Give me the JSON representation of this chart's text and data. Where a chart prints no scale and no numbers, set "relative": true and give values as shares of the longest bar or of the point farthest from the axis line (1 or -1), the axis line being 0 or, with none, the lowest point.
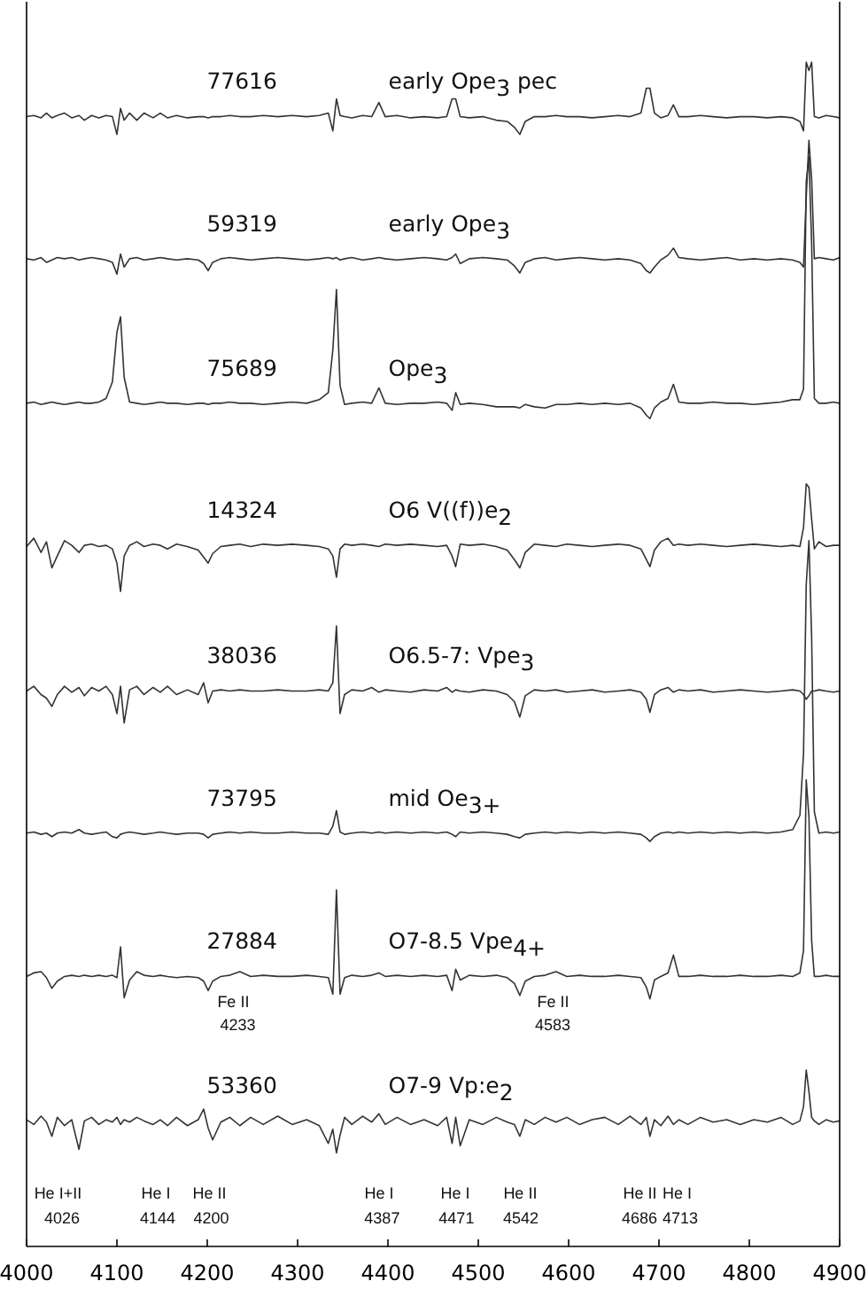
{
  "chart_data": {
    "type": "line",
    "relative": true,
    "marker": "none",
    "x": [
      4000,
      4008,
      4016,
      4022,
      4028,
      4034,
      4042,
      4050,
      4058,
      4064,
      4072,
      4080,
      4088,
      4095,
      4100,
      4104,
      4108,
      4114,
      4122,
      4130,
      4140,
      4148,
      4156,
      4166,
      4178,
      4190,
      4196,
      4201,
      4206,
      4215,
      4225,
      4236,
      4248,
      4262,
      4278,
      4294,
      4310,
      4324,
      4334,
      4339,
      4343,
      4347,
      4352,
      4360,
      4372,
      4382,
      4390,
      4397,
      4410,
      4425,
      4440,
      4455,
      4465,
      4471,
      4475,
      4480,
      4490,
      4505,
      4520,
      4532,
      4540,
      4546,
      4552,
      4562,
      4574,
      4586,
      4598,
      4612,
      4626,
      4640,
      4655,
      4668,
      4680,
      4686,
      4690,
      4695,
      4702,
      4710,
      4716,
      4722,
      4732,
      4746,
      4760,
      4775,
      4790,
      4805,
      4820,
      4835,
      4848,
      4856,
      4860,
      4863,
      4866,
      4869,
      4872,
      4877,
      4885,
      4893,
      4900
    ],
    "xlim": [
      4000,
      4900
    ],
    "xticks": [
      4000,
      4100,
      4200,
      4300,
      4400,
      4500,
      4600,
      4700,
      4800,
      4900
    ],
    "series": [
      {
        "color": "#333333",
        "values": [
          0.954,
          0.955,
          0.953,
          0.957,
          0.953,
          0.955,
          0.957,
          0.953,
          0.955,
          0.951,
          0.955,
          0.953,
          0.955,
          0.954,
          0.939,
          0.961,
          0.951,
          0.957,
          0.951,
          0.957,
          0.953,
          0.957,
          0.953,
          0.955,
          0.953,
          0.954,
          0.954,
          0.953,
          0.954,
          0.954,
          0.955,
          0.954,
          0.954,
          0.955,
          0.954,
          0.955,
          0.954,
          0.955,
          0.957,
          0.942,
          0.969,
          0.955,
          0.954,
          0.953,
          0.955,
          0.954,
          0.966,
          0.954,
          0.955,
          0.953,
          0.954,
          0.953,
          0.954,
          0.969,
          0.969,
          0.954,
          0.953,
          0.954,
          0.951,
          0.95,
          0.945,
          0.939,
          0.95,
          0.954,
          0.954,
          0.955,
          0.954,
          0.954,
          0.953,
          0.954,
          0.955,
          0.954,
          0.957,
          0.978,
          0.978,
          0.957,
          0.953,
          0.955,
          0.964,
          0.954,
          0.954,
          0.955,
          0.954,
          0.953,
          0.954,
          0.954,
          0.953,
          0.954,
          0.953,
          0.95,
          0.942,
          1.0,
          0.993,
          1.0,
          0.954,
          0.953,
          0.955,
          0.954,
          0.953
        ]
      },
      {
        "color": "#333333",
        "values": [
          0.834,
          0.833,
          0.835,
          0.831,
          0.833,
          0.835,
          0.834,
          0.835,
          0.833,
          0.834,
          0.835,
          0.834,
          0.833,
          0.831,
          0.821,
          0.838,
          0.827,
          0.834,
          0.835,
          0.833,
          0.834,
          0.835,
          0.834,
          0.833,
          0.834,
          0.833,
          0.83,
          0.824,
          0.831,
          0.834,
          0.835,
          0.834,
          0.833,
          0.834,
          0.835,
          0.834,
          0.833,
          0.834,
          0.835,
          0.834,
          0.835,
          0.833,
          0.834,
          0.835,
          0.833,
          0.834,
          0.835,
          0.834,
          0.833,
          0.834,
          0.835,
          0.834,
          0.833,
          0.835,
          0.838,
          0.83,
          0.834,
          0.835,
          0.834,
          0.833,
          0.828,
          0.822,
          0.831,
          0.834,
          0.835,
          0.833,
          0.834,
          0.835,
          0.834,
          0.833,
          0.834,
          0.833,
          0.83,
          0.824,
          0.822,
          0.827,
          0.833,
          0.837,
          0.843,
          0.835,
          0.834,
          0.833,
          0.834,
          0.835,
          0.833,
          0.834,
          0.833,
          0.834,
          0.833,
          0.831,
          0.827,
          0.886,
          0.934,
          0.901,
          0.834,
          0.835,
          0.834,
          0.833,
          0.835
        ]
      },
      {
        "color": "#333333",
        "values": [
          0.712,
          0.713,
          0.711,
          0.712,
          0.713,
          0.712,
          0.711,
          0.712,
          0.713,
          0.712,
          0.712,
          0.713,
          0.716,
          0.73,
          0.772,
          0.785,
          0.734,
          0.713,
          0.712,
          0.711,
          0.712,
          0.713,
          0.712,
          0.712,
          0.711,
          0.712,
          0.712,
          0.711,
          0.712,
          0.712,
          0.713,
          0.712,
          0.712,
          0.711,
          0.712,
          0.713,
          0.712,
          0.715,
          0.721,
          0.757,
          0.808,
          0.727,
          0.711,
          0.712,
          0.713,
          0.712,
          0.725,
          0.712,
          0.711,
          0.712,
          0.712,
          0.713,
          0.712,
          0.706,
          0.721,
          0.711,
          0.712,
          0.711,
          0.709,
          0.709,
          0.709,
          0.708,
          0.711,
          0.709,
          0.708,
          0.711,
          0.711,
          0.712,
          0.711,
          0.712,
          0.711,
          0.712,
          0.708,
          0.702,
          0.699,
          0.708,
          0.713,
          0.716,
          0.728,
          0.713,
          0.712,
          0.712,
          0.713,
          0.712,
          0.712,
          0.711,
          0.712,
          0.713,
          0.715,
          0.715,
          0.724,
          0.899,
          0.92,
          0.847,
          0.716,
          0.712,
          0.712,
          0.713,
          0.712
        ]
      },
      {
        "color": "#333333",
        "values": [
          0.591,
          0.598,
          0.586,
          0.595,
          0.573,
          0.583,
          0.596,
          0.592,
          0.586,
          0.592,
          0.593,
          0.591,
          0.592,
          0.589,
          0.577,
          0.553,
          0.583,
          0.592,
          0.595,
          0.591,
          0.593,
          0.592,
          0.589,
          0.593,
          0.591,
          0.588,
          0.582,
          0.577,
          0.585,
          0.591,
          0.592,
          0.593,
          0.591,
          0.593,
          0.592,
          0.593,
          0.592,
          0.591,
          0.589,
          0.583,
          0.565,
          0.589,
          0.593,
          0.592,
          0.593,
          0.592,
          0.591,
          0.593,
          0.592,
          0.593,
          0.592,
          0.591,
          0.592,
          0.583,
          0.574,
          0.593,
          0.592,
          0.593,
          0.591,
          0.588,
          0.58,
          0.573,
          0.586,
          0.593,
          0.592,
          0.591,
          0.593,
          0.592,
          0.591,
          0.592,
          0.593,
          0.592,
          0.589,
          0.58,
          0.574,
          0.588,
          0.595,
          0.598,
          0.592,
          0.593,
          0.592,
          0.593,
          0.592,
          0.591,
          0.592,
          0.593,
          0.592,
          0.591,
          0.592,
          0.591,
          0.607,
          0.644,
          0.641,
          0.614,
          0.589,
          0.595,
          0.591,
          0.592,
          0.592
        ]
      },
      {
        "color": "#333333",
        "values": [
          0.469,
          0.473,
          0.466,
          0.463,
          0.456,
          0.466,
          0.473,
          0.468,
          0.472,
          0.465,
          0.472,
          0.469,
          0.473,
          0.466,
          0.45,
          0.473,
          0.442,
          0.47,
          0.473,
          0.466,
          0.472,
          0.468,
          0.473,
          0.466,
          0.47,
          0.466,
          0.476,
          0.459,
          0.469,
          0.47,
          0.469,
          0.47,
          0.469,
          0.469,
          0.47,
          0.469,
          0.469,
          0.47,
          0.469,
          0.476,
          0.524,
          0.45,
          0.466,
          0.47,
          0.469,
          0.472,
          0.468,
          0.47,
          0.469,
          0.468,
          0.47,
          0.469,
          0.472,
          0.468,
          0.47,
          0.469,
          0.468,
          0.47,
          0.469,
          0.466,
          0.46,
          0.447,
          0.465,
          0.47,
          0.469,
          0.47,
          0.468,
          0.469,
          0.47,
          0.468,
          0.469,
          0.47,
          0.468,
          0.462,
          0.451,
          0.466,
          0.47,
          0.472,
          0.468,
          0.47,
          0.469,
          0.47,
          0.468,
          0.469,
          0.47,
          0.469,
          0.468,
          0.469,
          0.47,
          0.469,
          0.466,
          0.462,
          0.465,
          0.469,
          0.469,
          0.47,
          0.469,
          0.468,
          0.469
        ]
      },
      {
        "color": "#333333",
        "values": [
          0.349,
          0.35,
          0.348,
          0.349,
          0.346,
          0.349,
          0.35,
          0.349,
          0.352,
          0.349,
          0.348,
          0.349,
          0.35,
          0.346,
          0.345,
          0.348,
          0.349,
          0.35,
          0.349,
          0.348,
          0.349,
          0.35,
          0.349,
          0.348,
          0.349,
          0.349,
          0.348,
          0.345,
          0.348,
          0.349,
          0.35,
          0.349,
          0.35,
          0.349,
          0.349,
          0.35,
          0.349,
          0.349,
          0.348,
          0.355,
          0.368,
          0.35,
          0.348,
          0.349,
          0.35,
          0.349,
          0.35,
          0.349,
          0.35,
          0.349,
          0.35,
          0.349,
          0.35,
          0.348,
          0.346,
          0.35,
          0.349,
          0.35,
          0.349,
          0.348,
          0.346,
          0.345,
          0.348,
          0.349,
          0.35,
          0.349,
          0.35,
          0.349,
          0.35,
          0.349,
          0.35,
          0.349,
          0.348,
          0.345,
          0.342,
          0.346,
          0.349,
          0.35,
          0.349,
          0.35,
          0.349,
          0.35,
          0.349,
          0.35,
          0.349,
          0.35,
          0.349,
          0.35,
          0.352,
          0.364,
          0.416,
          0.559,
          0.596,
          0.514,
          0.367,
          0.349,
          0.35,
          0.349,
          0.35
        ]
      },
      {
        "color": "#333333",
        "values": [
          0.228,
          0.231,
          0.232,
          0.227,
          0.218,
          0.224,
          0.228,
          0.229,
          0.228,
          0.229,
          0.228,
          0.229,
          0.228,
          0.229,
          0.227,
          0.253,
          0.21,
          0.225,
          0.232,
          0.229,
          0.228,
          0.229,
          0.228,
          0.227,
          0.228,
          0.227,
          0.224,
          0.216,
          0.224,
          0.228,
          0.229,
          0.232,
          0.228,
          0.229,
          0.228,
          0.228,
          0.229,
          0.228,
          0.227,
          0.213,
          0.301,
          0.213,
          0.227,
          0.229,
          0.228,
          0.229,
          0.231,
          0.228,
          0.229,
          0.228,
          0.229,
          0.228,
          0.229,
          0.216,
          0.234,
          0.225,
          0.229,
          0.228,
          0.229,
          0.227,
          0.222,
          0.212,
          0.224,
          0.228,
          0.229,
          0.232,
          0.228,
          0.229,
          0.228,
          0.228,
          0.229,
          0.228,
          0.227,
          0.219,
          0.209,
          0.225,
          0.228,
          0.231,
          0.246,
          0.228,
          0.228,
          0.229,
          0.228,
          0.228,
          0.229,
          0.228,
          0.228,
          0.229,
          0.228,
          0.231,
          0.25,
          0.394,
          0.363,
          0.258,
          0.228,
          0.228,
          0.229,
          0.228,
          0.228
        ]
      },
      {
        "color": "#333333",
        "values": [
          0.107,
          0.103,
          0.11,
          0.105,
          0.093,
          0.109,
          0.102,
          0.107,
          0.082,
          0.106,
          0.109,
          0.103,
          0.107,
          0.105,
          0.109,
          0.103,
          0.107,
          0.105,
          0.109,
          0.106,
          0.103,
          0.107,
          0.102,
          0.109,
          0.102,
          0.107,
          0.116,
          0.1,
          0.09,
          0.105,
          0.109,
          0.102,
          0.109,
          0.103,
          0.11,
          0.103,
          0.107,
          0.102,
          0.087,
          0.099,
          0.079,
          0.094,
          0.109,
          0.103,
          0.11,
          0.105,
          0.112,
          0.103,
          0.109,
          0.103,
          0.107,
          0.102,
          0.109,
          0.087,
          0.109,
          0.085,
          0.107,
          0.103,
          0.109,
          0.105,
          0.103,
          0.093,
          0.107,
          0.103,
          0.109,
          0.105,
          0.109,
          0.103,
          0.107,
          0.109,
          0.103,
          0.11,
          0.103,
          0.109,
          0.093,
          0.107,
          0.102,
          0.11,
          0.103,
          0.107,
          0.103,
          0.109,
          0.105,
          0.107,
          0.103,
          0.107,
          0.105,
          0.109,
          0.103,
          0.106,
          0.118,
          0.149,
          0.131,
          0.109,
          0.106,
          0.103,
          0.107,
          0.105,
          0.106
        ]
      }
    ],
    "annotations": [
      "77616",
      "early Ope$_{3}$ pec",
      "59319",
      "early Ope$_{3}$",
      "75689",
      "Ope$_{3}$",
      "14324",
      "O6 V((f))e$_{2}$",
      "38036",
      "O6.5-7: Vpe$_{3}$",
      "73795",
      "mid Oe$_{3+}$",
      "27884",
      "O7-8.5 Vpe$_{4+}$",
      "53360",
      "O7-9 Vp:e$_{2}$",
      "Fe II",
      "4233",
      "Fe II",
      "4583",
      "He I+II",
      "4026",
      "He I",
      "4144",
      "He II",
      "4200",
      "He I",
      "4387",
      "He I",
      "4471",
      "He II",
      "4542",
      "He II",
      "4686",
      "He I",
      "4713"
    ]
  }
}
